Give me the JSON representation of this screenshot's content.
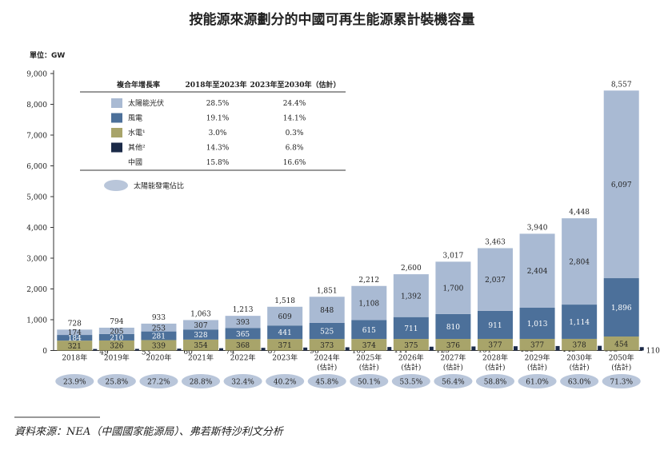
{
  "chart_data": {
    "type": "bar",
    "title": "按能源來源劃分的中國可再生能源累計裝機容量",
    "unit_label": "單位：GW",
    "ylim": [
      0,
      9000
    ],
    "yticks": [
      "0",
      "1,000",
      "2,000",
      "3,000",
      "4,000",
      "5,000",
      "6,000",
      "7,000",
      "8,000",
      "9,000"
    ],
    "categories": [
      [
        "2018年"
      ],
      [
        "2019年"
      ],
      [
        "2020年"
      ],
      [
        "2021年"
      ],
      [
        "2022年"
      ],
      [
        "2023年"
      ],
      [
        "2024年",
        "(估計)"
      ],
      [
        "2025年",
        "(估計)"
      ],
      [
        "2026年",
        "(估計)"
      ],
      [
        "2027年",
        "(估計)"
      ],
      [
        "2028年",
        "(估計)"
      ],
      [
        "2029年",
        "(估計)"
      ],
      [
        "2030年",
        "(估計)"
      ],
      [
        "2050年",
        "(估計)"
      ]
    ],
    "series": [
      {
        "name": "水電¹",
        "color": "#a8a46a",
        "values": [
          321,
          326,
          339,
          354,
          368,
          371,
          373,
          374,
          375,
          376,
          377,
          377,
          378,
          454
        ]
      },
      {
        "name": "風電",
        "color": "#4c709a",
        "values": [
          184,
          210,
          281,
          328,
          365,
          441,
          525,
          615,
          711,
          810,
          911,
          1013,
          1114,
          1896
        ]
      },
      {
        "name": "太陽能光伏",
        "color": "#a9bad3",
        "values": [
          174,
          205,
          253,
          307,
          393,
          609,
          848,
          1108,
          1392,
          1700,
          2037,
          2404,
          2804,
          6097
        ]
      }
    ],
    "other": {
      "name": "其他²",
      "color": "#1b2a48",
      "values": [
        49,
        53,
        60,
        74,
        87,
        96,
        105,
        114,
        123,
        131,
        138,
        145,
        152,
        110
      ]
    },
    "totals": [
      "728",
      "794",
      "933",
      "1,063",
      "1,213",
      "1,518",
      "1,851",
      "2,212",
      "2,600",
      "3,017",
      "3,463",
      "3,940",
      "4,448",
      "8,557"
    ],
    "value_labels": {
      "hydro": [
        "321",
        "326",
        "339",
        "354",
        "368",
        "371",
        "373",
        "374",
        "375",
        "376",
        "377",
        "377",
        "378",
        "454"
      ],
      "wind": [
        "184",
        "210",
        "281",
        "328",
        "365",
        "441",
        "525",
        "615",
        "711",
        "810",
        "911",
        "1,013",
        "1,114",
        "1,896"
      ],
      "solar": [
        "174",
        "205",
        "253",
        "307",
        "393",
        "609",
        "848",
        "1,108",
        "1,392",
        "1,700",
        "2,037",
        "2,404",
        "2,804",
        "6,097"
      ],
      "other": [
        "49",
        "53",
        "60",
        "74",
        "87",
        "96",
        "105",
        "114",
        "123",
        "131",
        "138",
        "145",
        "152",
        "110"
      ]
    },
    "solar_share_label": "太陽能發電佔比",
    "solar_share_color": "#b9c6da",
    "solar_share": [
      "23.9%",
      "25.8%",
      "27.2%",
      "28.8%",
      "32.4%",
      "40.2%",
      "45.8%",
      "50.1%",
      "53.5%",
      "56.4%",
      "58.8%",
      "61.0%",
      "63.0%",
      "71.3%"
    ],
    "legend": {
      "header": [
        "複合年增長率",
        "2018年至2023年",
        "2023年至2030年（估計）"
      ],
      "rows": [
        {
          "name": "太陽能光伏",
          "color": "#a9bad3",
          "cagr1": "28.5%",
          "cagr2": "24.4%"
        },
        {
          "name": "風電",
          "color": "#4c709a",
          "cagr1": "19.1%",
          "cagr2": "14.1%"
        },
        {
          "name": "水電¹",
          "color": "#a8a46a",
          "cagr1": "3.0%",
          "cagr2": "0.3%"
        },
        {
          "name": "其他²",
          "color": "#1b2a48",
          "cagr1": "14.3%",
          "cagr2": "6.8%"
        },
        {
          "name": "中國",
          "color": "",
          "cagr1": "15.8%",
          "cagr2": "16.6%"
        }
      ]
    },
    "source": "資料來源：NEA（中國國家能源局）、弗若斯特沙利文分析"
  }
}
